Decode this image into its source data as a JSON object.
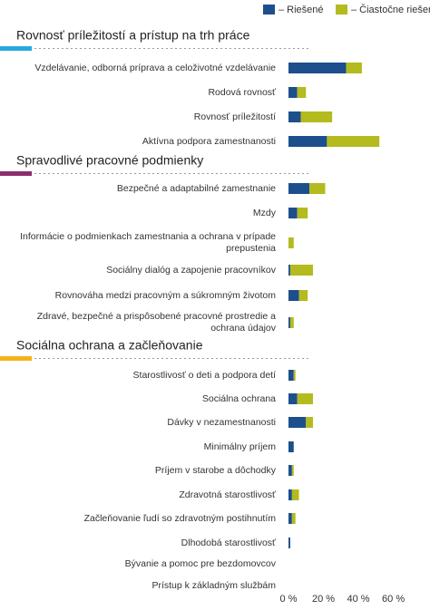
{
  "chart_data": {
    "type": "bar",
    "orientation": "horizontal",
    "stacked": true,
    "series": [
      {
        "name": "– Riešené",
        "color": "#1d4f8c"
      },
      {
        "name": "– Čiastočne riešené",
        "color": "#b3bb1e"
      }
    ],
    "groups": [
      {
        "title": "Rovnosť príležitostí a prístup na trh práce",
        "color": "#29a8df",
        "categories": [
          "Vzdelávanie, odborná príprava a celoživotné vzdelávanie",
          "Rodová rovnosť",
          "Rovnosť príležitostí",
          "Aktívna podpora zamestnanosti"
        ],
        "series": [
          {
            "values": [
              33,
              5,
              7,
              22
            ]
          },
          {
            "values": [
              9,
              5,
              18,
              30
            ]
          }
        ]
      },
      {
        "title": "Spravodlivé pracovné podmienky",
        "color": "#8b2d6e",
        "categories": [
          "Bezpečné a adaptabilné zamestnanie",
          "Mzdy",
          "Informácie o podmienkach zamestnania a ochrana v prípade prepustenia",
          "Sociálny dialóg a zapojenie pracovníkov",
          "Rovnováha medzi pracovným a súkromným životom",
          "Zdravé, bezpečné a prispôsobené pracovné prostredie a ochrana údajov"
        ],
        "series": [
          {
            "values": [
              12,
              5,
              0,
              1,
              6,
              1
            ]
          },
          {
            "values": [
              9,
              6,
              3,
              13,
              5,
              2
            ]
          }
        ]
      },
      {
        "title": "Sociálna ochrana a začleňovanie",
        "color": "#f5b31b",
        "categories": [
          "Starostlivosť o deti a podpora detí",
          "Sociálna ochrana",
          "Dávky v nezamestnanosti",
          "Minimálny príjem",
          "Príjem v starobe a dôchodky",
          "Zdravotná starostlivosť",
          "Začleňovanie ľudí so zdravotným postihnutím",
          "Dlhodobá starostlivosť",
          "Bývanie a pomoc pre bezdomovcov",
          "Prístup k základným službám"
        ],
        "series": [
          {
            "values": [
              3,
              5,
              10,
              3,
              2,
              2,
              2,
              1,
              0,
              0
            ]
          },
          {
            "values": [
              1,
              9,
              4,
              0,
              1,
              4,
              2,
              0,
              0,
              0
            ]
          }
        ]
      }
    ],
    "xlim": [
      0,
      68
    ],
    "xticks": [
      {
        "value": 0,
        "label": "0 %"
      },
      {
        "value": 20,
        "label": "20 %"
      },
      {
        "value": 40,
        "label": "40 %"
      },
      {
        "value": 60,
        "label": "60 %"
      }
    ],
    "grid": false
  }
}
